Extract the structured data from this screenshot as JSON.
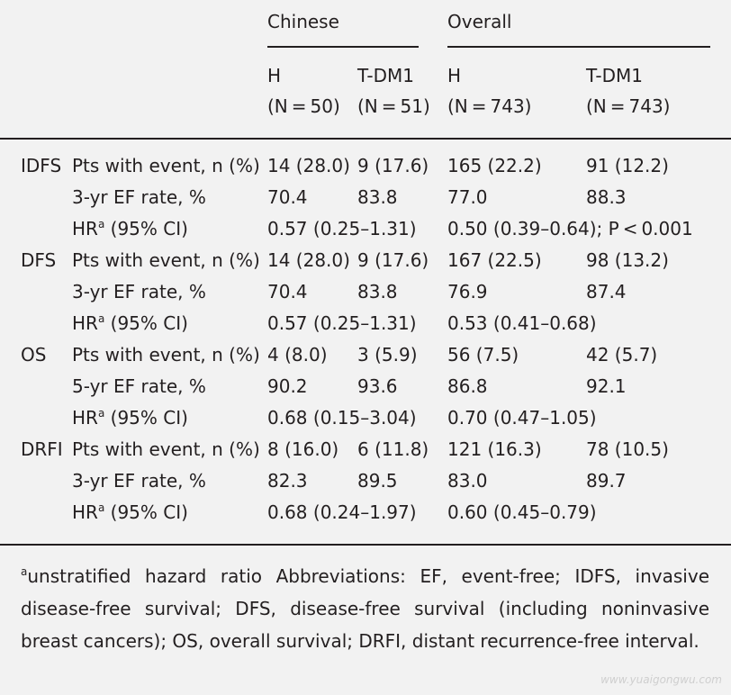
{
  "header": {
    "groups": [
      "Chinese",
      "Overall"
    ],
    "cols": [
      {
        "arm": "H",
        "n": "(N = 50)"
      },
      {
        "arm": "T-DM1",
        "n": "(N = 51)"
      },
      {
        "arm": "H",
        "n": "(N = 743)"
      },
      {
        "arm": "T-DM1",
        "n": "(N = 743)"
      }
    ]
  },
  "hr_label": {
    "main": "HR",
    "sup": "a",
    "rest": " (95% CI)"
  },
  "rows": [
    {
      "endpoint": "IDFS",
      "label": "Pts with event, n (%)",
      "c1": "14 (28.0)",
      "c2": "9 (17.6)",
      "c3": "165 (22.2)",
      "c4": "91 (12.2)"
    },
    {
      "endpoint": "",
      "label": "3-yr EF rate, %",
      "c1": "70.4",
      "c2": "83.8",
      "c3": "77.0",
      "c4": "88.3"
    },
    {
      "endpoint": "",
      "label": "HR",
      "c1": "0.57 (0.25–1.31)",
      "c3": "0.50 (0.39–0.64); P < 0.001"
    },
    {
      "endpoint": "DFS",
      "label": "Pts with event, n (%)",
      "c1": "14 (28.0)",
      "c2": "9 (17.6)",
      "c3": "167 (22.5)",
      "c4": "98 (13.2)"
    },
    {
      "endpoint": "",
      "label": "3-yr EF rate, %",
      "c1": "70.4",
      "c2": "83.8",
      "c3": "76.9",
      "c4": "87.4"
    },
    {
      "endpoint": "",
      "label": "HR",
      "c1": "0.57 (0.25–1.31)",
      "c3": "0.53 (0.41–0.68)"
    },
    {
      "endpoint": "OS",
      "label": "Pts with event, n (%)",
      "c1": "4 (8.0)",
      "c2": "3 (5.9)",
      "c3": "56 (7.5)",
      "c4": "42 (5.7)"
    },
    {
      "endpoint": "",
      "label": "5-yr EF rate, %",
      "c1": "90.2",
      "c2": "93.6",
      "c3": "86.8",
      "c4": "92.1"
    },
    {
      "endpoint": "",
      "label": "HR",
      "c1": "0.68 (0.15–3.04)",
      "c3": "0.70 (0.47–1.05)"
    },
    {
      "endpoint": "DRFI",
      "label": "Pts with event, n (%)",
      "c1": "8 (16.0)",
      "c2": "6 (11.8)",
      "c3": "121 (16.3)",
      "c4": "78 (10.5)"
    },
    {
      "endpoint": "",
      "label": "3-yr EF rate, %",
      "c1": "82.3",
      "c2": "89.5",
      "c3": "83.0",
      "c4": "89.7"
    },
    {
      "endpoint": "",
      "label": "HR",
      "c1": "0.68 (0.24–1.97)",
      "c3": "0.60 (0.45–0.79)"
    }
  ],
  "footnote": {
    "sup": "a",
    "text": "unstratified hazard ratio Abbreviations: EF, event-free; IDFS, invasive disease-free survival; DFS, disease-free survival (including noninvasive breast cancers); OS, overall survival; DRFI, distant recurrence-free interval."
  },
  "watermark": "www.yuaigongwu.com"
}
